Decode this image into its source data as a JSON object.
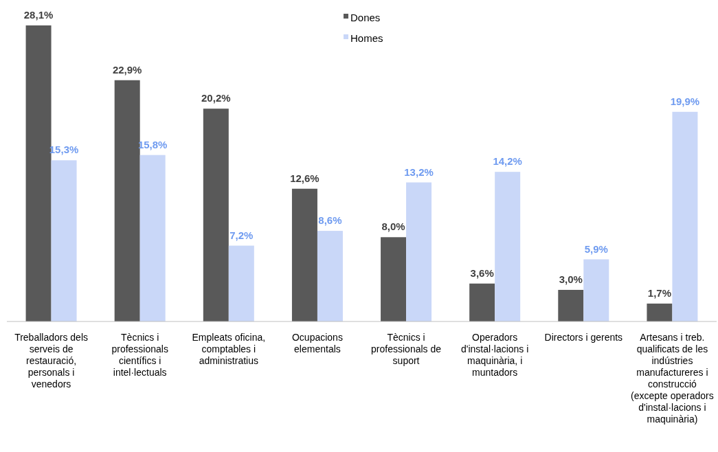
{
  "chart_data": {
    "type": "bar",
    "categories": [
      "Treballadors dels serveis de restauració, personals i venedors",
      "Tècnics i professionals científics i intel·lectuals",
      "Empleats oficina, comptables i administratius",
      "Ocupacions elementals",
      "Tècnics i professionals de suport",
      "Operadors d'instal·lacions i maquinària, i muntadors",
      "Directors i gerents",
      "Artesans i treb. qualificats de les indústries manufactureres i construcció (excepte operadors d'instal·lacions i maquinària)"
    ],
    "series": [
      {
        "name": "Dones",
        "color": "#595959",
        "values": [
          28.1,
          22.9,
          20.2,
          12.6,
          8.0,
          3.6,
          3.0,
          1.7
        ],
        "value_labels": [
          "28,1%",
          "22,9%",
          "20,2%",
          "12,6%",
          "8,0%",
          "3,6%",
          "3,0%",
          "1,7%"
        ]
      },
      {
        "name": "Homes",
        "color": "#c9d7f8",
        "values": [
          15.3,
          15.8,
          7.2,
          8.6,
          13.2,
          14.2,
          5.9,
          19.9
        ],
        "value_labels": [
          "15,3%",
          "15,8%",
          "7,2%",
          "8,6%",
          "13,2%",
          "14,2%",
          "5,9%",
          "19,9%"
        ]
      }
    ],
    "legend": "top"
  }
}
